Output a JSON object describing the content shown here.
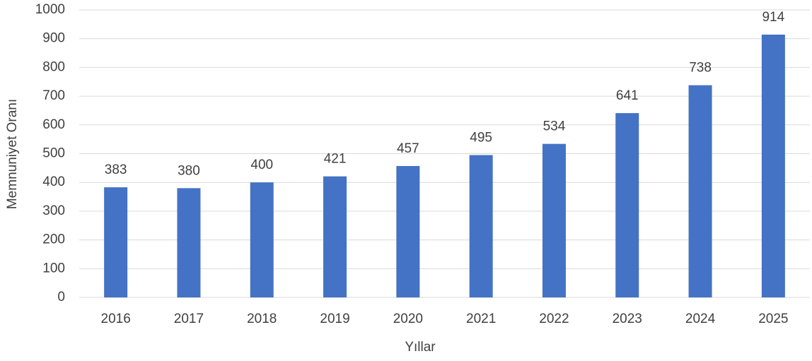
{
  "chart_data": {
    "type": "bar",
    "xlabel": "Yıllar",
    "ylabel": "Memnuniyet Oranı",
    "categories": [
      "2016",
      "2017",
      "2018",
      "2019",
      "2020",
      "2021",
      "2022",
      "2023",
      "2024",
      "2025"
    ],
    "values": [
      383,
      380,
      400,
      421,
      457,
      495,
      534,
      641,
      738,
      914
    ],
    "color": "#4472c4",
    "ylim": [
      0,
      1000
    ],
    "yticks": [
      0,
      100,
      200,
      300,
      400,
      500,
      600,
      700,
      800,
      900,
      1000
    ],
    "grid": true
  }
}
